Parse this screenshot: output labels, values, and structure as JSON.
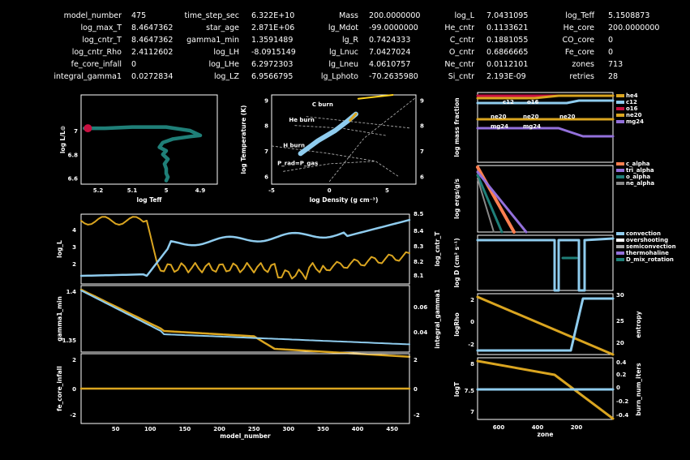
{
  "colors": {
    "orange": "#DAA520",
    "blue": "#8FCCEE",
    "teal": "#1F7F78",
    "red": "#C81040",
    "white": "#FFFFFF",
    "yellow": "#FFD21E",
    "gray": "#999999"
  },
  "header": [
    [
      {
        "k": "model_number",
        "v": "475"
      },
      {
        "k": "time_step_sec",
        "v": "6.322E+10"
      },
      {
        "k": "Mass",
        "v": "200.0000000"
      },
      {
        "k": "log_L",
        "v": "7.0431095"
      },
      {
        "k": "log_Teff",
        "v": "5.1508873"
      }
    ],
    [
      {
        "k": "log_max_T",
        "v": "8.4647362"
      },
      {
        "k": "star_age",
        "v": "2.871E+06"
      },
      {
        "k": "lg_Mdot",
        "v": "-99.0000000"
      },
      {
        "k": "He_cntr",
        "v": "0.1133621"
      },
      {
        "k": "He_core",
        "v": "200.0000000"
      }
    ],
    [
      {
        "k": "log_cntr_T",
        "v": "8.4647362"
      },
      {
        "k": "gamma1_min",
        "v": "1.3591489"
      },
      {
        "k": "lg_R",
        "v": "0.7424333"
      },
      {
        "k": "C_cntr",
        "v": "0.1881055"
      },
      {
        "k": "CO_core",
        "v": "0"
      }
    ],
    [
      {
        "k": "log_cntr_Rho",
        "v": "2.4112602"
      },
      {
        "k": "log_LH",
        "v": "-8.0915149"
      },
      {
        "k": "lg_Lnuc",
        "v": "7.0427024"
      },
      {
        "k": "O_cntr",
        "v": "0.6866665"
      },
      {
        "k": "Fe_core",
        "v": "0"
      }
    ],
    [
      {
        "k": "fe_core_infall",
        "v": "0"
      },
      {
        "k": "log_LHe",
        "v": "6.2972303"
      },
      {
        "k": "lg_Lneu",
        "v": "4.0610757"
      },
      {
        "k": "Ne_cntr",
        "v": "0.0112101"
      },
      {
        "k": "zones",
        "v": "713"
      }
    ],
    [
      {
        "k": "integral_gamma1",
        "v": "0.0272834"
      },
      {
        "k": "log_LZ",
        "v": "6.9566795"
      },
      {
        "k": "lg_Lphoto",
        "v": "-70.2635980"
      },
      {
        "k": "Si_cntr",
        "v": "2.193E-09"
      },
      {
        "k": "retries",
        "v": "28"
      }
    ]
  ],
  "chart_data": [
    {
      "id": "hr",
      "type": "line",
      "xlabel": "log Teff",
      "ylabel": "log L/L⊙",
      "xlim": [
        5.25,
        4.85
      ],
      "ylim": [
        6.55,
        7.3
      ],
      "xticks": [
        "5.2",
        "5.1",
        "5",
        "4.9"
      ],
      "yticks": [
        "6.6",
        "6.8",
        "7"
      ],
      "series": [
        {
          "color": "teal",
          "x": [
            5.24,
            5.22,
            5.18,
            5.1,
            5.0,
            4.93,
            4.9,
            4.93,
            4.98,
            5.01,
            5.02,
            5.0,
            5.01,
            4.995,
            5.005,
            5.0,
            5.0,
            4.995,
            5.0
          ],
          "y": [
            7.02,
            7.02,
            7.02,
            7.03,
            7.03,
            7.0,
            6.96,
            6.95,
            6.93,
            6.9,
            6.86,
            6.83,
            6.8,
            6.76,
            6.72,
            6.68,
            6.64,
            6.61,
            6.58
          ]
        }
      ],
      "marker": {
        "x": 5.23,
        "y": 7.02
      }
    },
    {
      "id": "trho",
      "type": "line",
      "xlabel": "log Density (g cm⁻³)",
      "ylabel": "log Temperature (K)",
      "xlim": [
        -5,
        7.5
      ],
      "ylim": [
        5.7,
        9.2
      ],
      "xticks": [
        "-5",
        "0",
        "5"
      ],
      "yticks": [
        "6",
        "7",
        "8",
        "9"
      ],
      "y2ticks": [
        "6",
        "7",
        "8",
        "9"
      ],
      "annotations": [
        "C burn",
        "He burn",
        "H burn",
        "P_rad=P_gas"
      ],
      "series": [
        {
          "color": "blue",
          "x": [
            -2.5,
            -1,
            0.5,
            1.5,
            2.3
          ],
          "y": [
            6.9,
            7.4,
            7.8,
            8.15,
            8.45
          ]
        },
        {
          "color": "orange",
          "x": [
            1.8,
            2.3
          ],
          "y": [
            8.2,
            8.46
          ]
        }
      ]
    },
    {
      "id": "abund",
      "type": "line",
      "ylabel": "log mass fraction",
      "series": [
        {
          "name": "he4",
          "color": "orange"
        },
        {
          "name": "c12",
          "color": "blue"
        },
        {
          "name": "o16",
          "color": "red"
        },
        {
          "name": "ne20",
          "color": "orange"
        },
        {
          "name": "mg24",
          "color": "#9370DB"
        }
      ],
      "line_labels": [
        "c12",
        "o16",
        "ne20",
        "ne20",
        "ne20",
        "mg24",
        "mg24"
      ]
    },
    {
      "id": "eps",
      "type": "line",
      "ylabel": "log ergs/g/s",
      "series": [
        {
          "name": "c_alpha",
          "color": "#FF7F50"
        },
        {
          "name": "tri_alpha",
          "color": "#9370DB"
        },
        {
          "name": "o_alpha",
          "color": "teal"
        },
        {
          "name": "ne_alpha",
          "color": "#888888"
        }
      ]
    },
    {
      "id": "mix",
      "type": "line",
      "ylabel": "log D (cm² s⁻¹)",
      "series": [
        {
          "name": "convection",
          "color": "blue"
        },
        {
          "name": "overshooting",
          "color": "white"
        },
        {
          "name": "semiconvection",
          "color": "#aaaaaa"
        },
        {
          "name": "thermohaline",
          "color": "#9370DB"
        },
        {
          "name": "D_mix_rotation",
          "color": "teal"
        }
      ]
    },
    {
      "id": "entropy",
      "type": "line",
      "ylabel": "logRho",
      "y2label": "entropy",
      "yticks": [
        "2",
        "0",
        "-2"
      ],
      "y2ticks": [
        "30",
        "25",
        "20"
      ]
    },
    {
      "id": "logT",
      "type": "line",
      "ylabel": "logT",
      "y2label": "burn_num_iters",
      "xlabel": "zone",
      "yticks": [
        "8",
        "7.5",
        "7"
      ],
      "y2ticks": [
        "0.4",
        "0.2",
        "0",
        "-0.2",
        "-0.4"
      ],
      "xticks": [
        "600",
        "400",
        "200"
      ]
    },
    {
      "id": "ts1",
      "type": "line",
      "ylabel": "log_L",
      "y2label": "log_cntr_T",
      "yticks": [
        "4",
        "3",
        "2"
      ],
      "y2ticks": [
        "8.5",
        "8.4",
        "8.3",
        "8.2",
        "8.1"
      ]
    },
    {
      "id": "ts2",
      "type": "line",
      "ylabel": "gamma1_min",
      "y2label": "integral_gamma1",
      "yticks": [
        "1.4",
        "1.35"
      ],
      "y2ticks": [
        "0.06",
        "0.04"
      ]
    },
    {
      "id": "ts3",
      "type": "line",
      "ylabel": "fe_core_infall",
      "xlabel": "model_number",
      "yticks": [
        "2",
        "0",
        "-2"
      ],
      "y2ticks": [
        "2",
        "0",
        "-2"
      ],
      "xticks": [
        "50",
        "100",
        "150",
        "200",
        "250",
        "300",
        "350",
        "400",
        "450"
      ],
      "series": [
        {
          "name": "fe_core_infall",
          "color": "orange",
          "x": [
            0,
            475
          ],
          "y": [
            0,
            0
          ]
        }
      ]
    }
  ]
}
